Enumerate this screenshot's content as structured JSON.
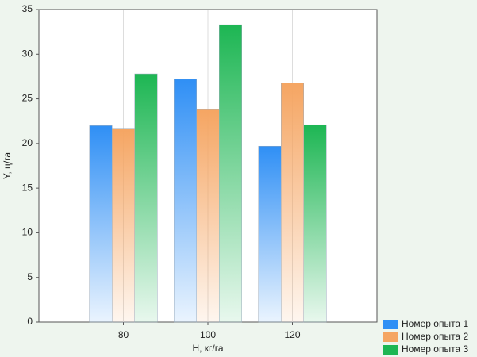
{
  "chart_data": {
    "type": "bar",
    "x_label": "Н, кг/га",
    "y_label": "Y, ц/га",
    "categories": [
      "80",
      "100",
      "120"
    ],
    "series": [
      {
        "name": "Номер опыта 1",
        "color": "#2f8ff5",
        "values": [
          22.0,
          27.2,
          19.7
        ]
      },
      {
        "name": "Номер опыта 2",
        "color": "#f5a562",
        "values": [
          21.7,
          23.8,
          26.8
        ]
      },
      {
        "name": "Номер опыта 3",
        "color": "#1db653",
        "values": [
          27.8,
          33.3,
          22.1
        ]
      }
    ],
    "ylim": [
      0,
      35
    ],
    "yticks": [
      0,
      5,
      10,
      15,
      20,
      25,
      30,
      35
    ],
    "grid": true,
    "legend": "bottom-right"
  }
}
